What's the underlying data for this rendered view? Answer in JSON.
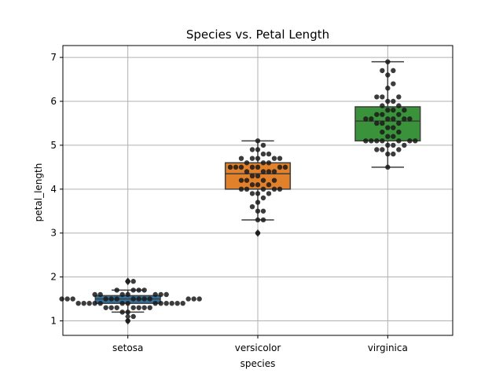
{
  "chart_data": {
    "type": "box",
    "title": "Species vs. Petal Length",
    "xlabel": "species",
    "ylabel": "petal_length",
    "categories": [
      "setosa",
      "versicolor",
      "virginica"
    ],
    "ylim": [
      0.67,
      7.27
    ],
    "yticks": [
      "1",
      "2",
      "3",
      "4",
      "5",
      "6",
      "7"
    ],
    "grid": true,
    "colors": [
      "#3274a1",
      "#e1812c",
      "#3a923a"
    ],
    "point_color": "#1a1a1a",
    "boxes": [
      {
        "category": "setosa",
        "q1": 1.4,
        "median": 1.5,
        "q3": 1.575,
        "whisker_low": 1.2,
        "whisker_high": 1.7,
        "outliers": [
          1.0,
          1.1,
          1.9,
          1.9
        ]
      },
      {
        "category": "versicolor",
        "q1": 4.0,
        "median": 4.35,
        "q3": 4.6,
        "whisker_low": 3.3,
        "whisker_high": 5.1,
        "outliers": [
          3.0
        ]
      },
      {
        "category": "virginica",
        "q1": 5.1,
        "median": 5.55,
        "q3": 5.875,
        "whisker_low": 4.5,
        "whisker_high": 6.9,
        "outliers": []
      }
    ],
    "points": [
      [
        1.4,
        1.4,
        1.3,
        1.5,
        1.4,
        1.7,
        1.4,
        1.5,
        1.4,
        1.5,
        1.5,
        1.6,
        1.4,
        1.1,
        1.2,
        1.5,
        1.3,
        1.4,
        1.7,
        1.5,
        1.7,
        1.5,
        1.0,
        1.7,
        1.9,
        1.6,
        1.6,
        1.5,
        1.4,
        1.6,
        1.6,
        1.5,
        1.5,
        1.4,
        1.5,
        1.2,
        1.3,
        1.4,
        1.3,
        1.5,
        1.3,
        1.3,
        1.3,
        1.6,
        1.9,
        1.4,
        1.6,
        1.4,
        1.5,
        1.4
      ],
      [
        4.7,
        4.5,
        4.9,
        4.0,
        4.6,
        4.5,
        4.7,
        3.3,
        4.6,
        3.9,
        3.5,
        4.2,
        4.0,
        4.7,
        3.6,
        4.4,
        4.5,
        4.1,
        4.5,
        3.9,
        4.8,
        4.0,
        4.9,
        4.7,
        4.3,
        4.4,
        4.8,
        5.0,
        4.5,
        3.5,
        3.8,
        3.7,
        3.9,
        5.1,
        4.5,
        4.5,
        4.7,
        4.4,
        4.1,
        4.0,
        4.4,
        4.6,
        4.0,
        3.3,
        4.2,
        4.2,
        4.2,
        4.3,
        3.0,
        4.1
      ],
      [
        6.0,
        5.1,
        5.9,
        5.6,
        5.8,
        6.6,
        4.5,
        6.3,
        5.8,
        6.1,
        5.1,
        5.3,
        5.5,
        5.0,
        5.1,
        5.3,
        5.5,
        6.7,
        6.9,
        5.0,
        5.7,
        4.9,
        6.7,
        4.9,
        5.7,
        6.0,
        4.8,
        4.9,
        5.6,
        5.8,
        6.1,
        6.4,
        5.6,
        5.1,
        5.6,
        6.1,
        5.6,
        5.5,
        4.8,
        5.4,
        5.6,
        5.1,
        5.1,
        5.9,
        5.7,
        5.2,
        5.0,
        5.2,
        5.4,
        5.1
      ]
    ]
  }
}
